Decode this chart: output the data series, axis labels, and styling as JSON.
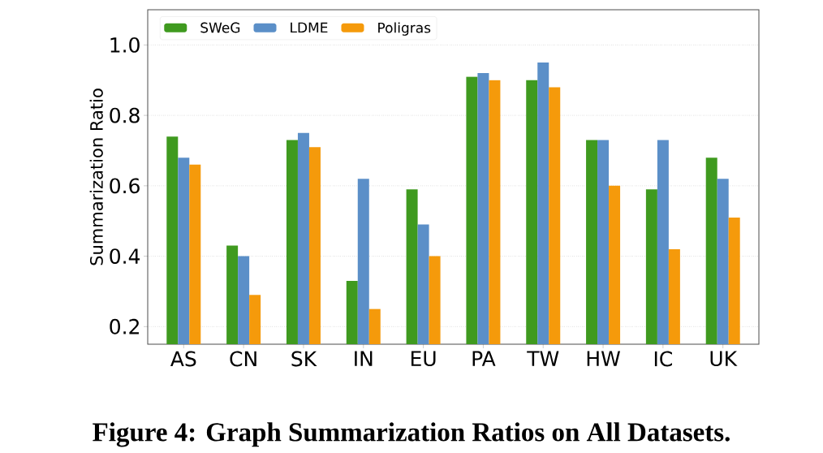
{
  "chart_data": {
    "type": "bar",
    "ylabel": "Summarization Ratio",
    "categories": [
      "AS",
      "CN",
      "SK",
      "IN",
      "EU",
      "PA",
      "TW",
      "HW",
      "IC",
      "UK"
    ],
    "series": [
      {
        "name": "SWeG",
        "color": "#3f9a1f",
        "values": [
          0.74,
          0.43,
          0.73,
          0.33,
          0.59,
          0.91,
          0.9,
          0.73,
          0.59,
          0.68
        ]
      },
      {
        "name": "LDME",
        "color": "#5b8fc8",
        "values": [
          0.68,
          0.4,
          0.75,
          0.62,
          0.49,
          0.92,
          0.95,
          0.73,
          0.73,
          0.62
        ]
      },
      {
        "name": "Poligras",
        "color": "#f59a0b",
        "values": [
          0.66,
          0.29,
          0.71,
          0.25,
          0.4,
          0.9,
          0.88,
          0.6,
          0.42,
          0.51
        ]
      }
    ],
    "ylim": [
      0.15,
      1.1
    ],
    "yticks": [
      {
        "value": 0.2,
        "label": "0.2"
      },
      {
        "value": 0.4,
        "label": "0.4"
      },
      {
        "value": 0.6,
        "label": "0.6"
      },
      {
        "value": 0.8,
        "label": "0.8"
      },
      {
        "value": 1.0,
        "label": "1.0"
      }
    ],
    "grid": "y",
    "legend": "top left",
    "annotations": [
      "Figure 4: Graph Summarization Ratios on All Datasets."
    ]
  }
}
